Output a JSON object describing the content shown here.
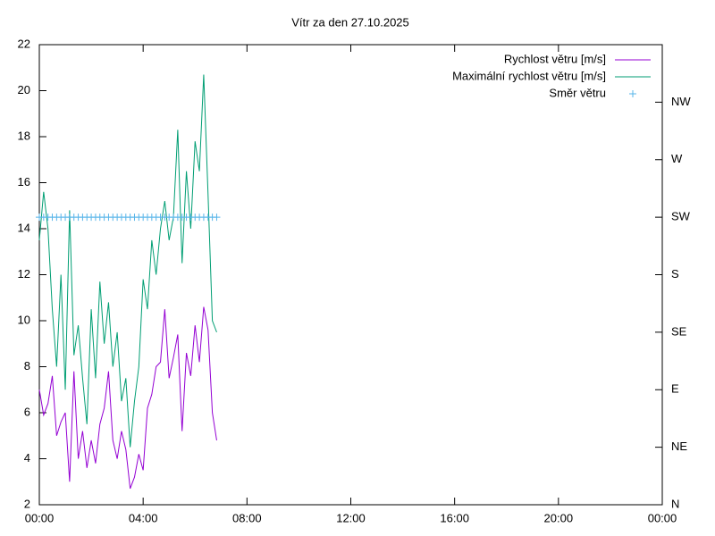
{
  "chart_data": {
    "type": "line",
    "title": "Vítr za den 27.10.2025",
    "x": [
      0,
      10,
      20,
      30,
      40,
      50,
      60,
      70,
      80,
      90,
      100,
      110,
      120,
      130,
      140,
      150,
      160,
      170,
      180,
      190,
      200,
      210,
      220,
      230,
      240,
      250,
      260,
      270,
      280,
      290,
      300,
      310,
      320,
      330,
      340,
      350,
      360,
      370,
      380,
      390,
      400,
      410
    ],
    "series": [
      {
        "name": "Rychlost větru [m/s]",
        "color": "#9400d3",
        "style": "line",
        "values": [
          7.0,
          5.9,
          6.4,
          7.6,
          5.0,
          5.6,
          6.0,
          3.0,
          7.8,
          4.0,
          5.2,
          3.6,
          4.8,
          3.8,
          5.5,
          6.2,
          7.8,
          4.8,
          4.0,
          5.2,
          4.4,
          2.7,
          3.2,
          4.2,
          3.5,
          6.2,
          6.8,
          8.0,
          8.2,
          10.5,
          7.5,
          8.4,
          9.4,
          5.2,
          8.6,
          7.6,
          9.8,
          8.2,
          10.6,
          9.6,
          6.0,
          4.8
        ]
      },
      {
        "name": "Maximální rychlost větru [m/s]",
        "color": "#009e73",
        "style": "line",
        "values": [
          13.5,
          15.6,
          14.0,
          10.5,
          8.0,
          12.0,
          7.0,
          14.8,
          8.5,
          9.8,
          7.5,
          5.5,
          10.5,
          7.5,
          11.7,
          9.0,
          10.8,
          8.0,
          9.5,
          6.5,
          7.5,
          4.5,
          6.5,
          8.0,
          11.8,
          10.5,
          13.5,
          12.0,
          14.0,
          15.2,
          13.5,
          14.5,
          18.3,
          12.5,
          16.5,
          14.0,
          17.8,
          16.5,
          20.7,
          15.5,
          10.0,
          9.5
        ]
      },
      {
        "name": "Směr větru",
        "color": "#56b4e9",
        "style": "points",
        "axis": "y2",
        "values": [
          225,
          225,
          225,
          225,
          225,
          225,
          225,
          225,
          225,
          225,
          225,
          225,
          225,
          225,
          225,
          225,
          225,
          225,
          225,
          225,
          225,
          225,
          225,
          225,
          225,
          225,
          225,
          225,
          225,
          225,
          225,
          225,
          225,
          225,
          225,
          225,
          225,
          225,
          225,
          225,
          225,
          225
        ]
      }
    ],
    "xlim": [
      0,
      1440
    ],
    "xticks": [
      {
        "value": 0,
        "label": "00:00"
      },
      {
        "value": 240,
        "label": "04:00"
      },
      {
        "value": 480,
        "label": "08:00"
      },
      {
        "value": 720,
        "label": "12:00"
      },
      {
        "value": 960,
        "label": "16:00"
      },
      {
        "value": 1200,
        "label": "20:00"
      },
      {
        "value": 1440,
        "label": "00:00"
      }
    ],
    "ylim": [
      2,
      22
    ],
    "yticks": [
      2,
      4,
      6,
      8,
      10,
      12,
      14,
      16,
      18,
      20,
      22
    ],
    "y2lim": [
      0,
      360
    ],
    "y2ticks": [
      {
        "value": 0,
        "label": "N"
      },
      {
        "value": 45,
        "label": "NE"
      },
      {
        "value": 90,
        "label": "E"
      },
      {
        "value": 135,
        "label": "SE"
      },
      {
        "value": 180,
        "label": "S"
      },
      {
        "value": 225,
        "label": "SW"
      },
      {
        "value": 270,
        "label": "W"
      },
      {
        "value": 315,
        "label": "NW"
      }
    ],
    "legend": "top-right"
  }
}
